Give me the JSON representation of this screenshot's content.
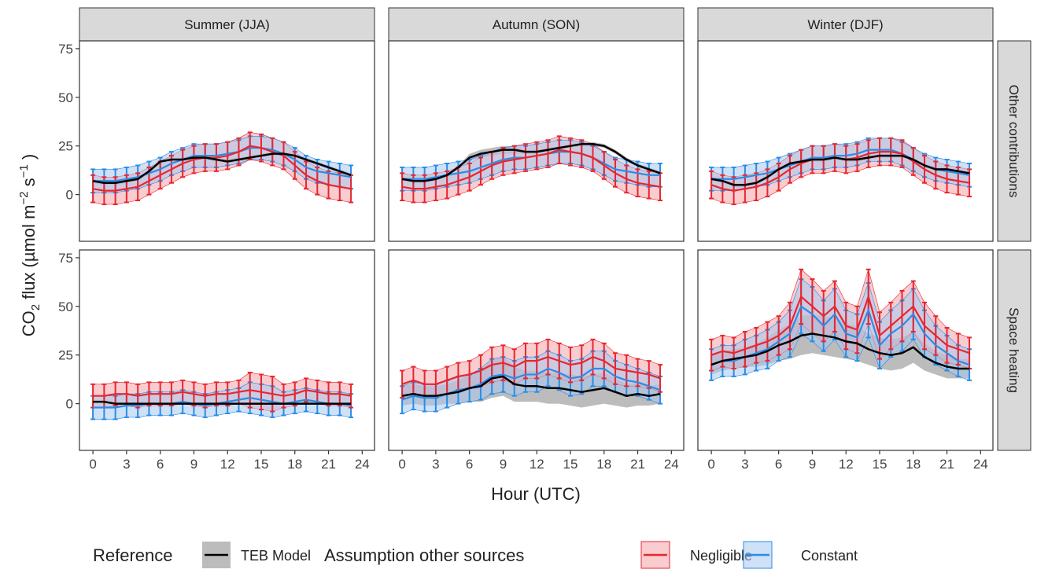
{
  "chart_data": {
    "type": "line",
    "ylabel": [
      "CO",
      "2",
      " flux (µmol m",
      "−2",
      " s",
      "−1",
      " )"
    ],
    "xlabel": "Hour (UTC)",
    "columns": [
      "Summer (JJA)",
      "Autumn (SON)",
      "Winter (DJF)"
    ],
    "rows": [
      "Other contributions",
      "Space heating"
    ],
    "legend": {
      "titles": [
        "Reference",
        "Assumption other sources"
      ],
      "position": "bottom"
    },
    "xlim": [
      -1.2,
      25.1
    ],
    "ylim": [
      -24,
      79
    ],
    "xticks": [
      0,
      3,
      6,
      9,
      12,
      15,
      18,
      21,
      24
    ],
    "yticks": [
      0,
      25,
      50,
      75
    ],
    "x": [
      0,
      1,
      2,
      3,
      4,
      5,
      6,
      7,
      8,
      9,
      10,
      11,
      12,
      13,
      14,
      15,
      16,
      17,
      18,
      19,
      20,
      21,
      22,
      23
    ],
    "panels": [
      {
        "series": [
          {
            "name": "TEB Model",
            "color": "#000000",
            "fill": "#a6a6a6",
            "values": [
              7,
              6,
              6,
              7,
              8,
              12,
              17,
              18,
              18,
              19,
              19,
              18,
              17,
              18,
              19,
              20,
              21,
              21,
              20,
              18,
              16,
              14,
              12,
              10
            ],
            "error": [
              1,
              1,
              1,
              1,
              1,
              1,
              1,
              1,
              1,
              1,
              1,
              1,
              1,
              1,
              1,
              1,
              1,
              1,
              1,
              1,
              1,
              1,
              1,
              1
            ]
          },
          {
            "name": "Negligible",
            "color": "#e8262f",
            "fill": "#f4a3a8",
            "values": [
              3,
              2,
              2,
              3,
              4,
              7,
              10,
              13,
              16,
              18,
              19,
              19,
              20,
              22,
              25,
              24,
              22,
              20,
              15,
              10,
              7,
              5,
              4,
              3
            ],
            "error": [
              7,
              7,
              7,
              7,
              7,
              7,
              7,
              7,
              7,
              7,
              7,
              7,
              7,
              7,
              7,
              7,
              7,
              7,
              7,
              7,
              7,
              7,
              7,
              7
            ]
          },
          {
            "name": "Constant",
            "color": "#2b8ce6",
            "fill": "#a7c8f0",
            "values": [
              7,
              7,
              7,
              8,
              9,
              11,
              13,
              16,
              18,
              20,
              20,
              20,
              21,
              22,
              24,
              24,
              23,
              21,
              18,
              14,
              12,
              11,
              10,
              9
            ],
            "error": [
              6,
              6,
              6,
              6,
              6,
              6,
              6,
              6,
              6,
              6,
              6,
              6,
              6,
              6,
              6,
              6,
              6,
              6,
              6,
              6,
              6,
              6,
              6,
              6
            ]
          }
        ]
      },
      {
        "series": [
          {
            "name": "TEB Model",
            "color": "#000000",
            "fill": "#a6a6a6",
            "values": [
              8,
              7,
              7,
              8,
              10,
              14,
              19,
              21,
              22,
              23,
              23,
              22,
              22,
              23,
              24,
              25,
              26,
              26,
              25,
              22,
              18,
              15,
              13,
              11
            ],
            "error": [
              1,
              1,
              1,
              1,
              1,
              1,
              2,
              2,
              2,
              2,
              2,
              1,
              1,
              1,
              1,
              1,
              1,
              1,
              1,
              1,
              1,
              1,
              1,
              1
            ]
          },
          {
            "name": "Negligible",
            "color": "#e8262f",
            "fill": "#f4a3a8",
            "values": [
              4,
              3,
              3,
              4,
              5,
              7,
              9,
              12,
              15,
              17,
              18,
              19,
              20,
              21,
              23,
              22,
              21,
              19,
              15,
              11,
              8,
              6,
              5,
              4
            ],
            "error": [
              7,
              7,
              7,
              7,
              7,
              7,
              7,
              7,
              7,
              7,
              7,
              7,
              7,
              7,
              7,
              7,
              7,
              7,
              7,
              7,
              7,
              7,
              7,
              7
            ]
          },
          {
            "name": "Constant",
            "color": "#2b8ce6",
            "fill": "#a7c8f0",
            "values": [
              8,
              8,
              8,
              9,
              10,
              11,
              12,
              14,
              16,
              18,
              19,
              19,
              20,
              21,
              22,
              22,
              21,
              19,
              16,
              13,
              12,
              11,
              10,
              10
            ],
            "error": [
              6,
              6,
              6,
              6,
              6,
              6,
              6,
              6,
              6,
              6,
              6,
              6,
              6,
              6,
              6,
              6,
              6,
              6,
              6,
              6,
              6,
              6,
              6,
              6
            ]
          }
        ]
      },
      {
        "series": [
          {
            "name": "TEB Model",
            "color": "#000000",
            "fill": "#a6a6a6",
            "values": [
              8,
              7,
              5,
              5,
              6,
              9,
              13,
              16,
              17,
              18,
              18,
              19,
              18,
              18,
              19,
              20,
              20,
              20,
              18,
              15,
              13,
              13,
              12,
              11
            ],
            "error": [
              1,
              1,
              1,
              1,
              1,
              1,
              1,
              1,
              1,
              1,
              1,
              1,
              1,
              1,
              1,
              1,
              1,
              1,
              1,
              1,
              1,
              1,
              1,
              1
            ]
          },
          {
            "name": "Negligible",
            "color": "#e8262f",
            "fill": "#f4a3a8",
            "values": [
              5,
              3,
              2,
              3,
              4,
              6,
              9,
              13,
              16,
              18,
              18,
              19,
              18,
              19,
              21,
              22,
              22,
              21,
              17,
              13,
              10,
              8,
              7,
              6
            ],
            "error": [
              7,
              7,
              7,
              7,
              7,
              7,
              7,
              7,
              7,
              7,
              7,
              7,
              7,
              7,
              7,
              7,
              7,
              7,
              7,
              7,
              7,
              7,
              7,
              7
            ]
          },
          {
            "name": "Constant",
            "color": "#2b8ce6",
            "fill": "#a7c8f0",
            "values": [
              8,
              8,
              8,
              9,
              10,
              11,
              13,
              15,
              17,
              19,
              19,
              20,
              20,
              21,
              23,
              23,
              23,
              21,
              18,
              15,
              13,
              12,
              11,
              10
            ],
            "error": [
              6,
              6,
              6,
              6,
              6,
              6,
              6,
              6,
              6,
              6,
              6,
              6,
              6,
              6,
              6,
              6,
              6,
              6,
              6,
              6,
              6,
              6,
              6,
              6
            ]
          }
        ]
      },
      {
        "series": [
          {
            "name": "TEB Model",
            "color": "#000000",
            "fill": "#a6a6a6",
            "values": [
              1,
              1,
              0,
              0,
              0,
              0,
              0,
              0,
              0,
              0,
              0,
              0,
              0,
              0,
              0,
              0,
              0,
              0,
              0,
              0,
              0,
              0,
              0,
              0
            ],
            "error": [
              0.5,
              0.5,
              0.5,
              0.5,
              0.5,
              0.5,
              0.5,
              0.5,
              0.5,
              0.5,
              0.5,
              0.5,
              0.5,
              0.5,
              0.5,
              0.5,
              0.5,
              0.5,
              0.5,
              0.5,
              0.5,
              0.5,
              0.5,
              0.5
            ]
          },
          {
            "name": "Negligible",
            "color": "#e8262f",
            "fill": "#f4a3a8",
            "values": [
              4,
              4,
              5,
              5,
              4,
              5,
              5,
              5,
              6,
              5,
              4,
              5,
              5,
              6,
              7,
              6,
              5,
              4,
              5,
              7,
              6,
              5,
              5,
              4
            ],
            "error": [
              6,
              6,
              6,
              6,
              6,
              6,
              6,
              6,
              6,
              6,
              6,
              6,
              6,
              6,
              9,
              9,
              9,
              6,
              6,
              6,
              6,
              6,
              6,
              6
            ]
          },
          {
            "name": "Constant",
            "color": "#2b8ce6",
            "fill": "#a7c8f0",
            "values": [
              -2,
              -2,
              -2,
              -1,
              -1,
              0,
              0,
              0,
              1,
              0,
              -1,
              0,
              1,
              2,
              3,
              2,
              1,
              0,
              1,
              2,
              1,
              0,
              0,
              -1
            ],
            "error": [
              6,
              6,
              6,
              6,
              6,
              6,
              6,
              6,
              6,
              6,
              6,
              6,
              6,
              6,
              8,
              8,
              8,
              6,
              6,
              6,
              6,
              6,
              6,
              6
            ]
          }
        ]
      },
      {
        "series": [
          {
            "name": "TEB Model",
            "color": "#000000",
            "fill": "#a6a6a6",
            "values": [
              4,
              5,
              4,
              4,
              5,
              6,
              8,
              9,
              13,
              14,
              10,
              9,
              9,
              8,
              8,
              7,
              6,
              7,
              8,
              6,
              4,
              5,
              4,
              5
            ],
            "error": [
              5,
              5,
              5,
              5,
              5,
              6,
              7,
              8,
              10,
              10,
              9,
              8,
              8,
              8,
              8,
              8,
              8,
              8,
              8,
              7,
              6,
              6,
              5,
              5
            ]
          },
          {
            "name": "Negligible",
            "color": "#e8262f",
            "fill": "#f4a3a8",
            "values": [
              10,
              12,
              10,
              10,
              12,
              14,
              15,
              17,
              20,
              21,
              19,
              22,
              22,
              24,
              22,
              20,
              21,
              24,
              22,
              18,
              17,
              16,
              15,
              13
            ],
            "error": [
              7,
              7,
              7,
              7,
              7,
              7,
              7,
              8,
              9,
              9,
              9,
              9,
              9,
              9,
              9,
              9,
              9,
              9,
              9,
              8,
              8,
              7,
              7,
              7
            ]
          },
          {
            "name": "Constant",
            "color": "#2b8ce6",
            "fill": "#a7c8f0",
            "values": [
              2,
              4,
              3,
              3,
              5,
              7,
              8,
              10,
              14,
              15,
              13,
              15,
              15,
              18,
              16,
              13,
              14,
              18,
              18,
              14,
              12,
              11,
              9,
              7
            ],
            "error": [
              7,
              7,
              7,
              7,
              7,
              7,
              7,
              8,
              9,
              9,
              9,
              9,
              9,
              9,
              9,
              9,
              9,
              9,
              9,
              8,
              8,
              7,
              7,
              7
            ]
          }
        ]
      },
      {
        "series": [
          {
            "name": "TEB Model",
            "color": "#000000",
            "fill": "#a6a6a6",
            "values": [
              20,
              22,
              23,
              24,
              25,
              27,
              30,
              32,
              35,
              36,
              35,
              34,
              32,
              31,
              28,
              26,
              25,
              26,
              29,
              24,
              21,
              19,
              18,
              18
            ],
            "error": [
              5,
              5,
              5,
              5,
              6,
              7,
              8,
              9,
              10,
              10,
              10,
              10,
              9,
              9,
              8,
              8,
              8,
              8,
              8,
              7,
              6,
              6,
              5,
              5
            ]
          },
          {
            "name": "Negligible",
            "color": "#e8262f",
            "fill": "#f4a3a8",
            "values": [
              25,
              27,
              26,
              28,
              30,
              32,
              35,
              40,
              55,
              50,
              45,
              50,
              40,
              38,
              55,
              35,
              40,
              45,
              50,
              40,
              35,
              30,
              28,
              26
            ],
            "error": [
              8,
              8,
              8,
              9,
              9,
              10,
              10,
              12,
              14,
              14,
              13,
              13,
              12,
              12,
              14,
              12,
              12,
              13,
              13,
              12,
              10,
              9,
              8,
              8
            ]
          },
          {
            "name": "Constant",
            "color": "#2b8ce6",
            "fill": "#a7c8f0",
            "values": [
              20,
              22,
              22,
              24,
              26,
              28,
              32,
              36,
              50,
              46,
              40,
              46,
              36,
              34,
              48,
              30,
              36,
              40,
              46,
              36,
              30,
              26,
              22,
              20
            ],
            "error": [
              8,
              8,
              8,
              9,
              9,
              10,
              10,
              12,
              14,
              14,
              13,
              13,
              12,
              12,
              14,
              12,
              12,
              13,
              13,
              12,
              10,
              9,
              8,
              8
            ]
          }
        ]
      }
    ]
  }
}
